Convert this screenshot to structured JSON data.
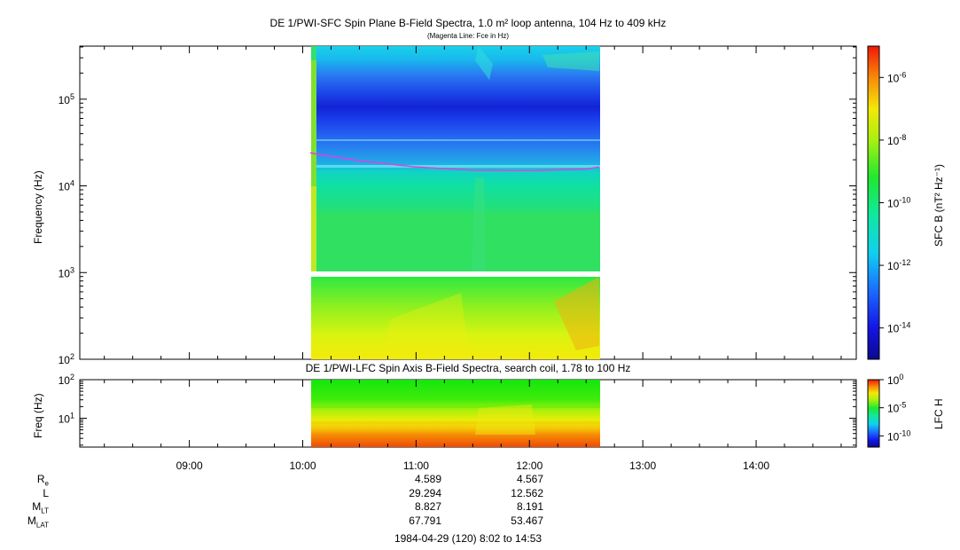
{
  "chart_data": [
    {
      "type": "heatmap",
      "title": "DE 1/PWI-SFC  Spin Plane B-Field Spectra, 1.0 m² loop antenna, 104 Hz to 409 kHz",
      "subtitle": "(Magenta Line: Fce in Hz)",
      "ylabel": "Frequency (Hz)",
      "yscale": "log",
      "ylim": [
        100,
        409000
      ],
      "y_ticks": [
        {
          "value": 100,
          "base": "10",
          "exp": "2"
        },
        {
          "value": 1000,
          "base": "10",
          "exp": "3"
        },
        {
          "value": 10000,
          "base": "10",
          "exp": "4"
        },
        {
          "value": 100000,
          "base": "10",
          "exp": "5"
        }
      ],
      "data_interval": [
        "10:04",
        "12:37"
      ],
      "colorbar": {
        "label": "SFC B (nT² Hz⁻¹)",
        "scale": "log",
        "range": [
          1e-15,
          1e-05
        ],
        "ticks": [
          {
            "value": 1e-06,
            "base": "10",
            "exp": "-6"
          },
          {
            "value": 1e-08,
            "base": "10",
            "exp": "-8"
          },
          {
            "value": 1e-10,
            "base": "10",
            "exp": "-10"
          },
          {
            "value": 1e-12,
            "base": "10",
            "exp": "-12"
          },
          {
            "value": 1e-14,
            "base": "10",
            "exp": "-14"
          }
        ]
      },
      "series": [
        {
          "name": "Fce in Hz",
          "x": [
            "10:04",
            "10:30",
            "11:00",
            "11:30",
            "12:00",
            "12:30",
            "12:37"
          ],
          "y": [
            24000,
            19500,
            16500,
            15200,
            15000,
            15600,
            16500
          ],
          "color": "#e040e0"
        }
      ]
    },
    {
      "type": "heatmap",
      "title": "DE 1/PWI-LFC  Spin Axis B-Field Spectra, search coil, 1.78 to 100 Hz",
      "ylabel": "Freq (Hz)",
      "yscale": "log",
      "ylim": [
        1.78,
        100
      ],
      "y_ticks": [
        {
          "value": 10,
          "base": "10",
          "exp": "1"
        },
        {
          "value": 100,
          "base": "10",
          "exp": "2"
        }
      ],
      "data_interval": [
        "10:04",
        "12:37"
      ],
      "colorbar": {
        "label": "LFC H",
        "scale": "log",
        "range": [
          1e-12,
          1
        ],
        "ticks": [
          {
            "value": 1,
            "base": "10",
            "exp": "0"
          },
          {
            "value": 1e-05,
            "base": "10",
            "exp": "-5"
          },
          {
            "value": 1e-10,
            "base": "10",
            "exp": "-10"
          }
        ]
      },
      "x_ticks": [
        "09:00",
        "10:00",
        "11:00",
        "12:00",
        "13:00",
        "14:00"
      ],
      "xlim": [
        "08:02",
        "14:53"
      ]
    }
  ],
  "ephemeris": {
    "labels": [
      {
        "main": "R",
        "sub": "e"
      },
      {
        "main": "L",
        "sub": ""
      },
      {
        "main": "M",
        "sub": "LT"
      },
      {
        "main": "M",
        "sub": "LAT"
      }
    ],
    "columns": [
      {
        "time": "11:00",
        "values": [
          "4.589",
          "29.294",
          "8.827",
          "67.791"
        ]
      },
      {
        "time": "12:00",
        "values": [
          "4.567",
          "12.562",
          "8.191",
          "53.467"
        ]
      }
    ],
    "date_range": "1984-04-29 (120) 8:02 to 14:53"
  },
  "colors": {
    "fce_line": "#e040e0",
    "plot_border": "#000000",
    "background": "#ffffff"
  }
}
